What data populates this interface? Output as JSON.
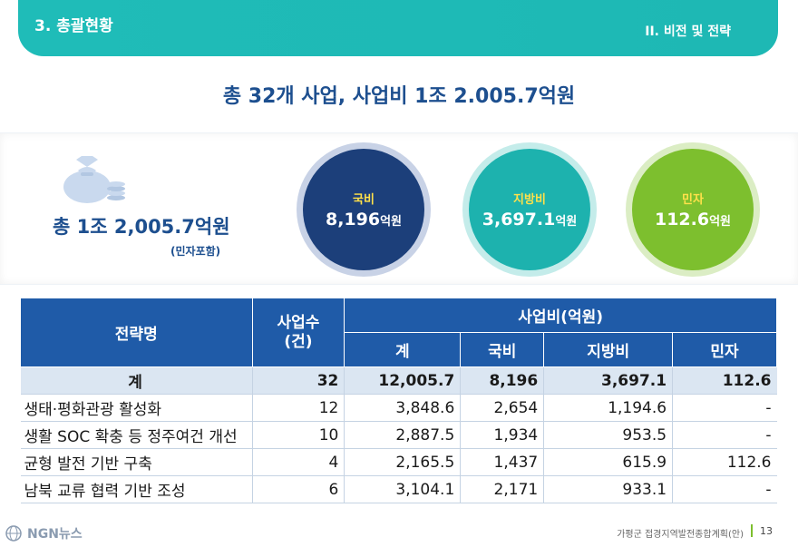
{
  "header": {
    "section": "3. 총괄현황",
    "chapter": "II. 비전 및 전략"
  },
  "headline": "총 32개 사업, 사업비 1조 2.005.7억원",
  "summary": {
    "total": "총 1조 2,005.7억원",
    "note": "(민자포함)",
    "funds": [
      {
        "label": "국비",
        "value": "8,196",
        "unit": "억원",
        "color": "#1c3f7a"
      },
      {
        "label": "지방비",
        "value": "3,697.1",
        "unit": "억원",
        "color": "#1db2ae"
      },
      {
        "label": "민자",
        "value": "112.6",
        "unit": "억원",
        "color": "#7dbf2e"
      }
    ]
  },
  "table": {
    "headers": {
      "strategy": "전략명",
      "projects": "사업수\n(건)",
      "budget": "사업비(억원)",
      "sum": "계",
      "national": "국비",
      "local": "지방비",
      "private": "민자"
    },
    "total_row": {
      "name": "계",
      "count": "32",
      "sum": "12,005.7",
      "national": "8,196",
      "local": "3,697.1",
      "private": "112.6"
    },
    "rows": [
      {
        "name": "생태·평화관광 활성화",
        "count": "12",
        "sum": "3,848.6",
        "national": "2,654",
        "local": "1,194.6",
        "private": "-"
      },
      {
        "name": "생활 SOC 확충 등 정주여건 개선",
        "count": "10",
        "sum": "2,887.5",
        "national": "1,934",
        "local": "953.5",
        "private": "-"
      },
      {
        "name": "균형 발전 기반 구축",
        "count": "4",
        "sum": "2,165.5",
        "national": "1,437",
        "local": "615.9",
        "private": "112.6"
      },
      {
        "name": "남북 교류 협력 기반 조성",
        "count": "6",
        "sum": "3,104.1",
        "national": "2,171",
        "local": "933.1",
        "private": "-"
      }
    ]
  },
  "footer": {
    "logo": "NGN뉴스",
    "doc": "가평군 접경지역발전종합계획(안)",
    "page": "13"
  }
}
